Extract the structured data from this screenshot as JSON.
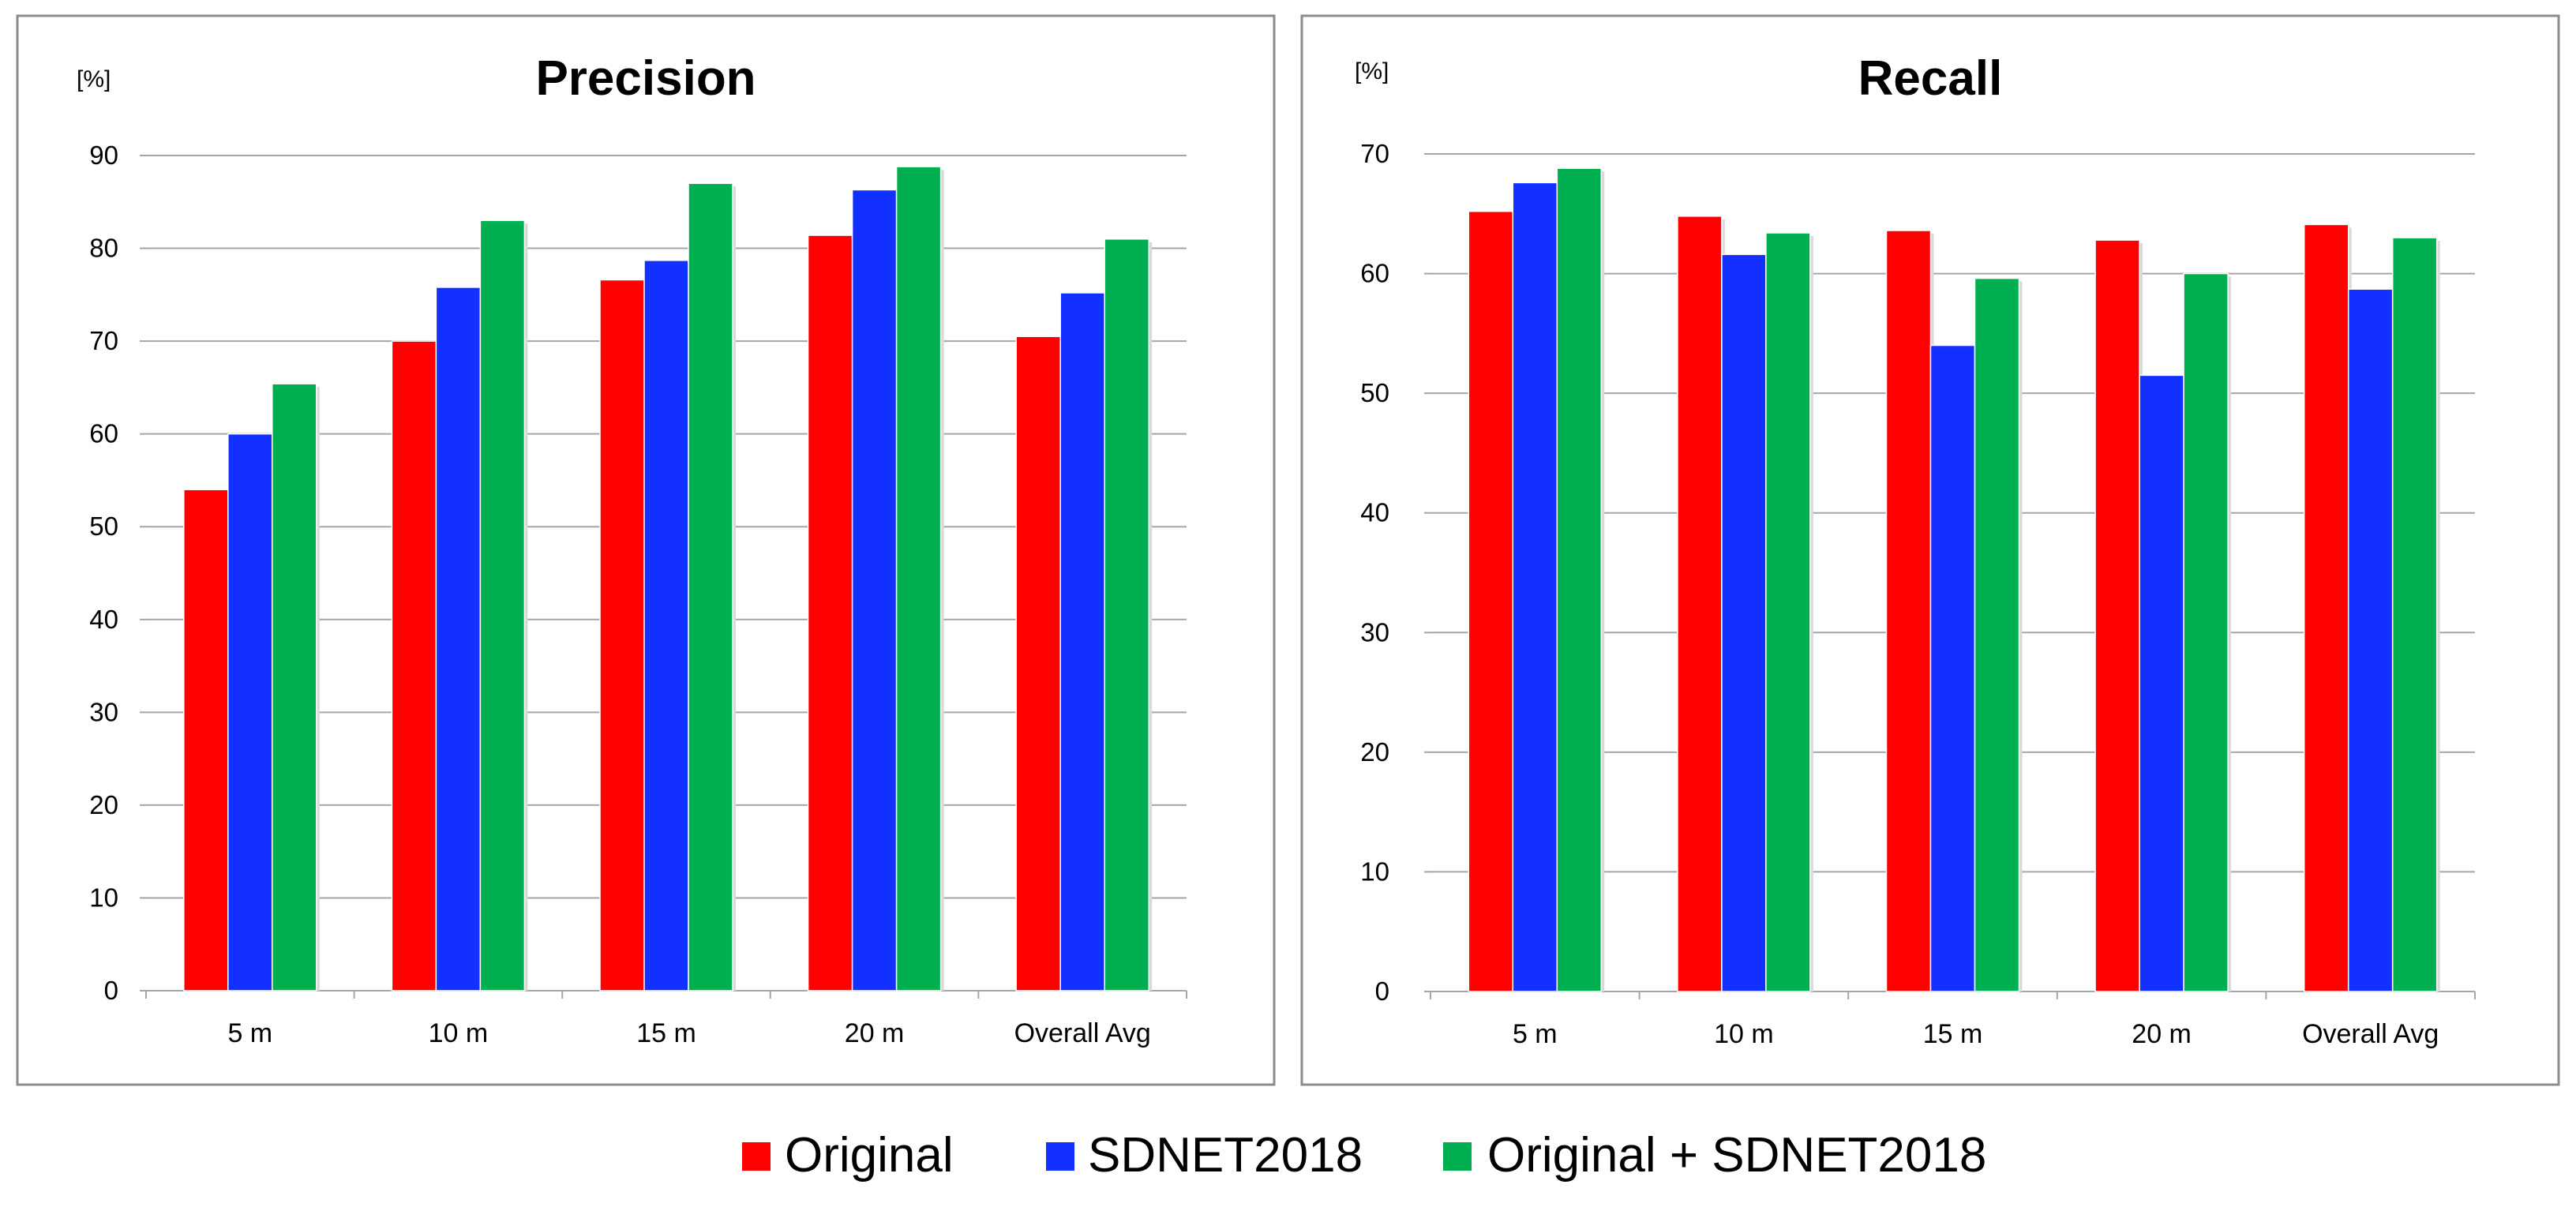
{
  "colors": {
    "series": [
      "#ff0000",
      "#1230ff",
      "#00b050"
    ],
    "frame": "#8c8c8c",
    "grid": "#a6a6a6",
    "text": "#000000"
  },
  "chart_data": [
    {
      "type": "bar",
      "title": "Precision",
      "unit_label": "[%]",
      "xlabel": "",
      "ylabel": "[%]",
      "categories": [
        "5 m",
        "10 m",
        "15 m",
        "20 m",
        "Overall Avg"
      ],
      "ylim": [
        0,
        90
      ],
      "yticks": [
        "0",
        "10",
        "20",
        "30",
        "40",
        "50",
        "60",
        "70",
        "80",
        "90"
      ],
      "grid": true,
      "series": [
        {
          "name": "Original",
          "values": [
            54,
            70,
            76.6,
            81.4,
            70.5
          ]
        },
        {
          "name": "SDNET2018",
          "values": [
            60,
            75.8,
            78.7,
            86.3,
            75.2
          ]
        },
        {
          "name": "Original + SDNET2018",
          "values": [
            65.4,
            83,
            87,
            88.8,
            81
          ]
        }
      ]
    },
    {
      "type": "bar",
      "title": "Recall",
      "unit_label": "[%]",
      "xlabel": "",
      "ylabel": "[%]",
      "categories": [
        "5 m",
        "10 m",
        "15 m",
        "20 m",
        "Overall Avg"
      ],
      "ylim": [
        0,
        70
      ],
      "yticks": [
        "0",
        "10",
        "20",
        "30",
        "40",
        "50",
        "60",
        "70"
      ],
      "grid": true,
      "series": [
        {
          "name": "Original",
          "values": [
            65.2,
            64.8,
            63.6,
            62.8,
            64.1
          ]
        },
        {
          "name": "SDNET2018",
          "values": [
            67.6,
            61.6,
            54,
            51.5,
            58.7
          ]
        },
        {
          "name": "Original + SDNET2018",
          "values": [
            68.8,
            63.4,
            59.6,
            60,
            63
          ]
        }
      ]
    }
  ],
  "legend": {
    "position": "bottom-center",
    "items": [
      "Original",
      "SDNET2018",
      "Original + SDNET2018"
    ]
  }
}
